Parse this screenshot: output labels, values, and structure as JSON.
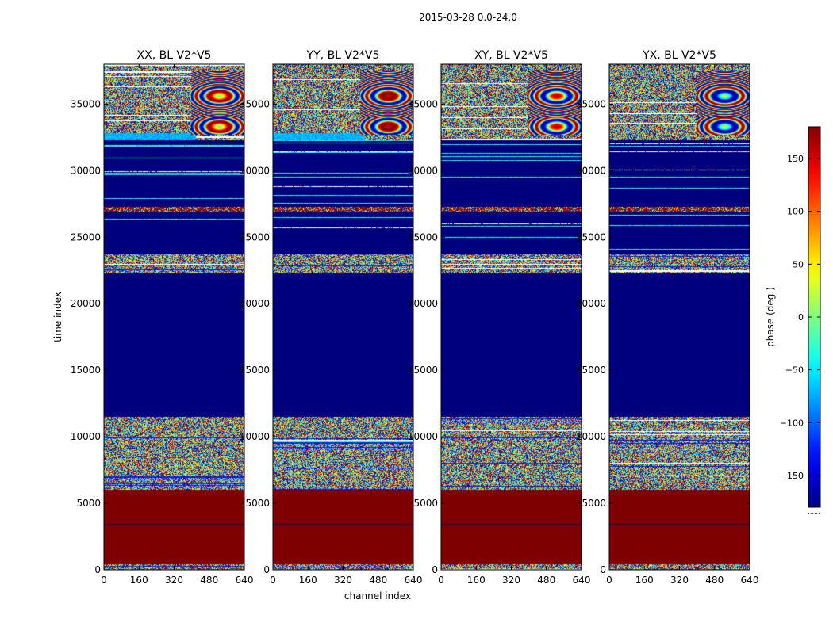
{
  "figure": {
    "suptitle": "2015-03-28 0.0-24.0"
  },
  "colors": {
    "dark_blue": "#00007f",
    "dark_red": "#7f0000",
    "white": "#ffffff",
    "frame": "#000000"
  },
  "chart_data": {
    "type": "heatmap",
    "xlabel": "channel index",
    "ylabel": "time index",
    "xlim": [
      0,
      640
    ],
    "ylim": [
      0,
      38000
    ],
    "x_ticks": [
      0,
      160,
      320,
      480,
      640
    ],
    "x_tick_labels": [
      "0",
      "160",
      "320",
      "480",
      "640"
    ],
    "y_ticks": [
      0,
      5000,
      10000,
      15000,
      20000,
      25000,
      30000,
      35000
    ],
    "y_tick_labels": [
      "0",
      "5000",
      "10000",
      "15000",
      "20000",
      "25000",
      "30000",
      "35000"
    ],
    "colorbar": {
      "label": "phase (deg.)",
      "range": [
        -180,
        180
      ],
      "ticks": [
        150,
        100,
        50,
        0,
        -50,
        -100,
        -150
      ],
      "tick_labels": [
        "150",
        "100",
        "50",
        "0",
        "−50",
        "−100",
        "−150"
      ],
      "colormap": "jet",
      "footnote": "......"
    },
    "panels": [
      {
        "title": "XX, BL V2*V5",
        "variant": 0
      },
      {
        "title": "YY, BL V2*V5",
        "variant": 1
      },
      {
        "title": "XY, BL V2*V5",
        "variant": 2
      },
      {
        "title": "YX, BL V2*V5",
        "variant": 3
      }
    ],
    "segments_summary": [
      {
        "from": 0,
        "to": 400,
        "kind": "noise"
      },
      {
        "from": 400,
        "to": 6000,
        "kind": "constant",
        "phase_deg": 180
      },
      {
        "from": 6000,
        "to": 11500,
        "kind": "noise"
      },
      {
        "from": 11500,
        "to": 22300,
        "kind": "constant",
        "phase_deg": -180
      },
      {
        "from": 22300,
        "to": 23700,
        "kind": "noise"
      },
      {
        "from": 23700,
        "to": 32300,
        "kind": "mostly_constant_with_lines",
        "phase_deg": -180
      },
      {
        "from": 32300,
        "to": 38000,
        "kind": "noise_with_fringes"
      }
    ]
  }
}
